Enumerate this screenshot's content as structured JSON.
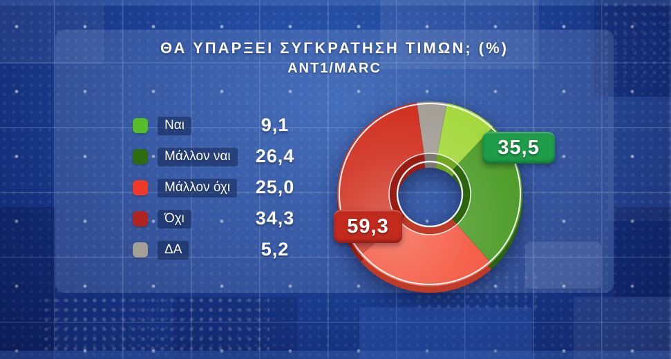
{
  "header": {
    "title": "ΘΑ ΥΠΑΡΞΕΙ ΣΥΓΚΡΑΤΗΣΗ ΤΙΜΩΝ; (%)",
    "subtitle": "ANT1/MARC"
  },
  "chart_data": {
    "type": "pie",
    "donut": true,
    "title": "ΘΑ ΥΠΑΡΞΕΙ ΣΥΓΚΡΑΤΗΣΗ ΤΙΜΩΝ; (%)",
    "source_label": "ANT1/MARC",
    "start_angle_deg": 10.6,
    "direction": "clockwise",
    "categories": [
      "Ναι",
      "Μάλλον ναι",
      "Μάλλον όχι",
      "Όχι",
      "ΔΑ"
    ],
    "values": [
      9.1,
      26.4,
      25.0,
      34.3,
      5.2
    ],
    "display_values": [
      "9,1",
      "26,4",
      "25,0",
      "34,3",
      "5,2"
    ],
    "legend_swatch_colors": [
      "#54bd28",
      "#2f6b11",
      "#ee3a2b",
      "#b12521",
      "#a49e96"
    ],
    "slice_colors": [
      "#a6d93f",
      "#4f9d2b",
      "#f4543c",
      "#d02e1d",
      "#a39e96"
    ],
    "slice_side_colors": [
      "#6fa623",
      "#2d6410",
      "#bf3a27",
      "#991d12",
      "#7e7a73"
    ],
    "legend_position": "left",
    "callouts": [
      {
        "text": "35,5",
        "value": 35.5,
        "color": "#1e9c48"
      },
      {
        "text": "59,3",
        "value": 59.3,
        "color": "#c22a1d"
      }
    ]
  }
}
